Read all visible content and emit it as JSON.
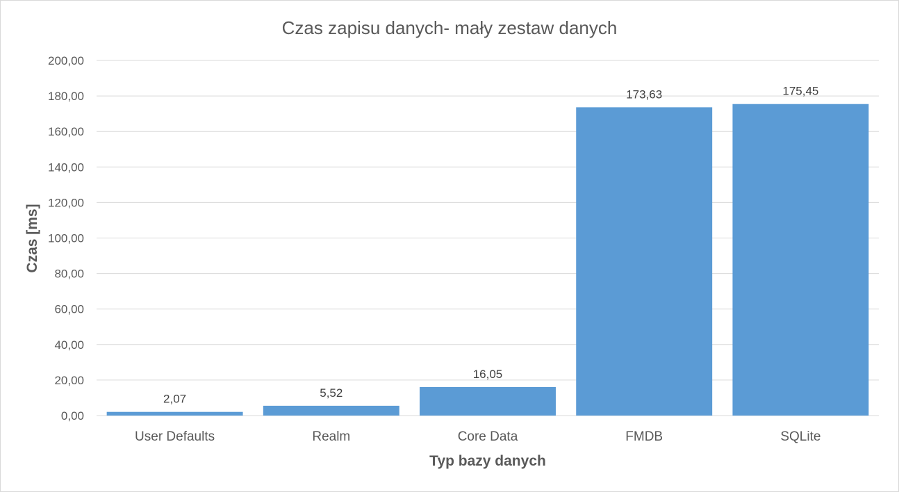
{
  "chart_data": {
    "type": "bar",
    "title": "Czas zapisu danych- mały zestaw danych",
    "xlabel": "Typ bazy danych",
    "ylabel": "Czas [ms]",
    "categories": [
      "User Defaults",
      "Realm",
      "Core Data",
      "FMDB",
      "SQLite"
    ],
    "values": [
      2.07,
      5.52,
      16.05,
      173.63,
      175.45
    ],
    "value_labels": [
      "2,07",
      "5,52",
      "16,05",
      "173,63",
      "175,45"
    ],
    "ylim": [
      0,
      200
    ],
    "yticks": [
      0,
      20,
      40,
      60,
      80,
      100,
      120,
      140,
      160,
      180,
      200
    ],
    "ytick_labels": [
      "0,00",
      "20,00",
      "40,00",
      "60,00",
      "80,00",
      "100,00",
      "120,00",
      "140,00",
      "160,00",
      "180,00",
      "200,00"
    ],
    "grid": true,
    "legend": "none",
    "bar_color": "#5b9bd5"
  }
}
